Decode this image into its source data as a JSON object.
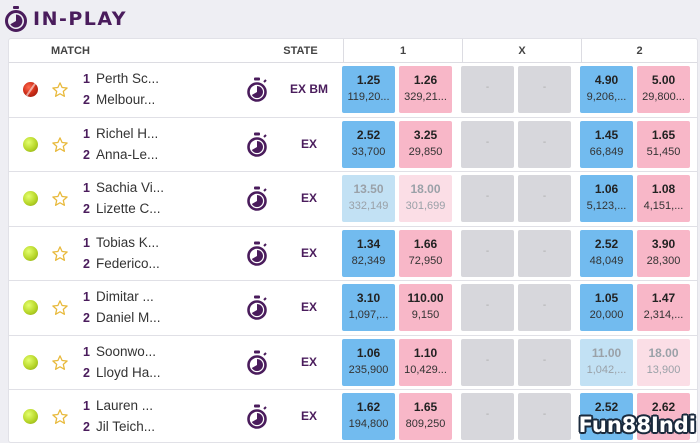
{
  "header": {
    "title": "IN-PLAY",
    "icon": "stopwatch-icon"
  },
  "columns": {
    "match": "MATCH",
    "state": "STATE",
    "home": "1",
    "draw": "X",
    "away": "2"
  },
  "colors": {
    "accent": "#4a1c5c",
    "back": "#72bbef",
    "lay": "#f8b7c8",
    "suspended_back": "#c2e1f4",
    "suspended_lay": "#fbdee6",
    "empty": "#d7d7dc"
  },
  "rows": [
    {
      "sport": "cricket",
      "team1_num": "1",
      "team1": "Perth Sc...",
      "team2_num": "2",
      "team2": "Melbour...",
      "market": "EX BM",
      "odds": [
        {
          "price": "1.25",
          "size": "119,20..."
        },
        {
          "price": "1.26",
          "size": "329,21..."
        },
        {
          "price": "-",
          "size": ""
        },
        {
          "price": "-",
          "size": ""
        },
        {
          "price": "4.90",
          "size": "9,206,..."
        },
        {
          "price": "5.00",
          "size": "29,800..."
        }
      ]
    },
    {
      "sport": "tennis",
      "team1_num": "1",
      "team1": "Richel H...",
      "team2_num": "2",
      "team2": "Anna-Le...",
      "market": "EX",
      "odds": [
        {
          "price": "2.52",
          "size": "33,700"
        },
        {
          "price": "3.25",
          "size": "29,850"
        },
        {
          "price": "-",
          "size": ""
        },
        {
          "price": "-",
          "size": ""
        },
        {
          "price": "1.45",
          "size": "66,849"
        },
        {
          "price": "1.65",
          "size": "51,450"
        }
      ]
    },
    {
      "sport": "tennis",
      "team1_num": "1",
      "team1": "Sachia Vi...",
      "team2_num": "2",
      "team2": "Lizette C...",
      "market": "EX",
      "odds": [
        {
          "price": "13.50",
          "size": "332,149"
        },
        {
          "price": "18.00",
          "size": "301,699"
        },
        {
          "price": "-",
          "size": ""
        },
        {
          "price": "-",
          "size": ""
        },
        {
          "price": "1.06",
          "size": "5,123,..."
        },
        {
          "price": "1.08",
          "size": "4,151,..."
        }
      ]
    },
    {
      "sport": "tennis",
      "team1_num": "1",
      "team1": "Tobias K...",
      "team2_num": "2",
      "team2": "Federico...",
      "market": "EX",
      "odds": [
        {
          "price": "1.34",
          "size": "82,349"
        },
        {
          "price": "1.66",
          "size": "72,950"
        },
        {
          "price": "-",
          "size": ""
        },
        {
          "price": "-",
          "size": ""
        },
        {
          "price": "2.52",
          "size": "48,049"
        },
        {
          "price": "3.90",
          "size": "28,300"
        }
      ]
    },
    {
      "sport": "tennis",
      "team1_num": "1",
      "team1": "Dimitar ...",
      "team2_num": "2",
      "team2": "Daniel M...",
      "market": "EX",
      "odds": [
        {
          "price": "3.10",
          "size": "1,097,..."
        },
        {
          "price": "110.00",
          "size": "9,150"
        },
        {
          "price": "-",
          "size": ""
        },
        {
          "price": "-",
          "size": ""
        },
        {
          "price": "1.05",
          "size": "20,000"
        },
        {
          "price": "1.47",
          "size": "2,314,..."
        }
      ]
    },
    {
      "sport": "tennis",
      "team1_num": "1",
      "team1": "Soonwo...",
      "team2_num": "2",
      "team2": "Lloyd Ha...",
      "market": "EX",
      "odds": [
        {
          "price": "1.06",
          "size": "235,900"
        },
        {
          "price": "1.10",
          "size": "10,429..."
        },
        {
          "price": "-",
          "size": ""
        },
        {
          "price": "-",
          "size": ""
        },
        {
          "price": "11.00",
          "size": "1,042,..."
        },
        {
          "price": "18.00",
          "size": "13,900"
        }
      ]
    },
    {
      "sport": "tennis",
      "team1_num": "1",
      "team1": "Lauren ...",
      "team2_num": "2",
      "team2": "Jil Teich...",
      "market": "EX",
      "odds": [
        {
          "price": "1.62",
          "size": "194,800"
        },
        {
          "price": "1.65",
          "size": "809,250"
        },
        {
          "price": "-",
          "size": ""
        },
        {
          "price": "-",
          "size": ""
        },
        {
          "price": "2.52",
          "size": ""
        },
        {
          "price": "2.62",
          "size": ""
        }
      ]
    }
  ],
  "watermark": "Fun88Indi"
}
